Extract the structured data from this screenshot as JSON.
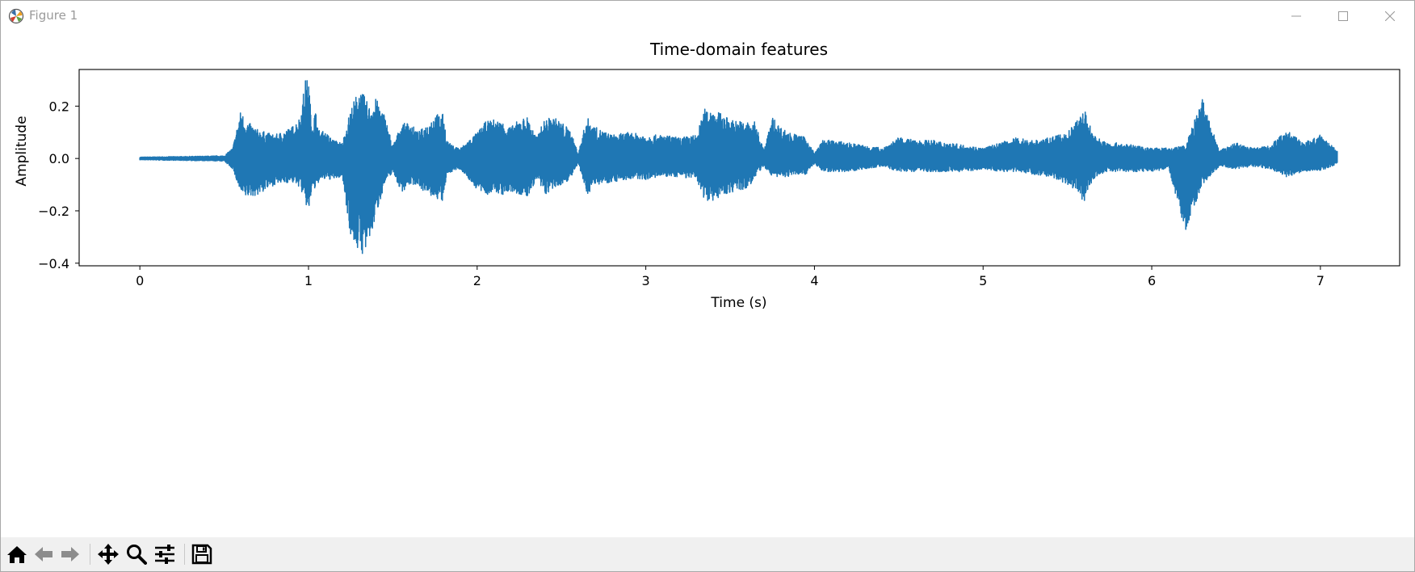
{
  "window": {
    "title": "Figure 1"
  },
  "toolbar": {
    "tools": [
      "home-icon",
      "back-icon",
      "forward-icon",
      "pan-icon",
      "zoom-icon",
      "configure-subplots-icon",
      "save-icon"
    ]
  },
  "colors": {
    "line": "#1f77b4",
    "toolbar_bg": "#f0f0f0",
    "title_text": "#9a9a9a"
  },
  "chart_data": {
    "type": "line",
    "title": "Time-domain features",
    "xlabel": "Time (s)",
    "ylabel": "Amplitude",
    "xlim": [
      -0.36,
      7.47
    ],
    "ylim": [
      -0.41,
      0.34
    ],
    "xticks": [
      0,
      1,
      2,
      3,
      4,
      5,
      6,
      7
    ],
    "xtick_labels": [
      "0",
      "1",
      "2",
      "3",
      "4",
      "5",
      "6",
      "7"
    ],
    "yticks": [
      0.2,
      0.0,
      -0.2,
      -0.4
    ],
    "ytick_labels": [
      "0.2",
      "0.0",
      "−0.2",
      "−0.4"
    ],
    "grid": false,
    "series": [
      {
        "envelope": {
          "t": [
            0.0,
            0.3,
            0.5,
            0.55,
            0.6,
            0.62,
            0.7,
            0.8,
            0.9,
            0.95,
            0.98,
            1.0,
            1.02,
            1.04,
            1.06,
            1.1,
            1.15,
            1.2,
            1.25,
            1.3,
            1.33,
            1.36,
            1.4,
            1.45,
            1.5,
            1.55,
            1.6,
            1.65,
            1.7,
            1.75,
            1.8,
            1.82,
            1.85,
            1.9,
            2.0,
            2.05,
            2.1,
            2.15,
            2.2,
            2.25,
            2.3,
            2.35,
            2.4,
            2.45,
            2.5,
            2.55,
            2.6,
            2.65,
            2.7,
            2.8,
            2.9,
            3.0,
            3.1,
            3.2,
            3.3,
            3.35,
            3.4,
            3.5,
            3.6,
            3.65,
            3.7,
            3.75,
            3.8,
            3.85,
            3.9,
            3.95,
            4.0,
            4.05,
            4.1,
            4.2,
            4.3,
            4.4,
            4.5,
            4.6,
            4.7,
            4.8,
            4.9,
            5.0,
            5.1,
            5.2,
            5.3,
            5.4,
            5.5,
            5.55,
            5.6,
            5.65,
            5.7,
            5.75,
            5.8,
            5.9,
            6.0,
            6.1,
            6.2,
            6.3,
            6.4,
            6.5,
            6.6,
            6.7,
            6.8,
            6.9,
            7.0,
            7.1
          ],
          "upper": [
            0.005,
            0.008,
            0.01,
            0.04,
            0.19,
            0.15,
            0.11,
            0.09,
            0.12,
            0.16,
            0.3,
            0.31,
            0.12,
            0.19,
            0.11,
            0.1,
            0.07,
            0.06,
            0.19,
            0.27,
            0.24,
            0.2,
            0.23,
            0.17,
            0.05,
            0.13,
            0.14,
            0.1,
            0.13,
            0.17,
            0.17,
            0.07,
            0.05,
            0.04,
            0.1,
            0.14,
            0.15,
            0.14,
            0.12,
            0.15,
            0.16,
            0.08,
            0.15,
            0.16,
            0.14,
            0.11,
            0.02,
            0.16,
            0.12,
            0.09,
            0.1,
            0.09,
            0.09,
            0.08,
            0.09,
            0.19,
            0.19,
            0.15,
            0.14,
            0.14,
            0.03,
            0.16,
            0.12,
            0.1,
            0.09,
            0.08,
            0.02,
            0.07,
            0.07,
            0.06,
            0.05,
            0.04,
            0.08,
            0.07,
            0.07,
            0.06,
            0.05,
            0.04,
            0.06,
            0.08,
            0.07,
            0.08,
            0.1,
            0.14,
            0.19,
            0.1,
            0.07,
            0.06,
            0.06,
            0.05,
            0.04,
            0.04,
            0.05,
            0.23,
            0.03,
            0.06,
            0.04,
            0.05,
            0.11,
            0.06,
            0.09,
            0.03
          ],
          "lower": [
            -0.005,
            -0.008,
            -0.01,
            -0.04,
            -0.14,
            -0.15,
            -0.14,
            -0.1,
            -0.09,
            -0.11,
            -0.17,
            -0.21,
            -0.12,
            -0.12,
            -0.09,
            -0.08,
            -0.08,
            -0.07,
            -0.3,
            -0.36,
            -0.37,
            -0.33,
            -0.22,
            -0.1,
            -0.05,
            -0.13,
            -0.1,
            -0.1,
            -0.14,
            -0.15,
            -0.17,
            -0.06,
            -0.05,
            -0.04,
            -0.12,
            -0.14,
            -0.13,
            -0.14,
            -0.13,
            -0.14,
            -0.15,
            -0.08,
            -0.14,
            -0.12,
            -0.1,
            -0.08,
            -0.02,
            -0.14,
            -0.1,
            -0.09,
            -0.08,
            -0.08,
            -0.07,
            -0.07,
            -0.08,
            -0.16,
            -0.16,
            -0.13,
            -0.12,
            -0.07,
            -0.03,
            -0.07,
            -0.07,
            -0.07,
            -0.06,
            -0.06,
            -0.02,
            -0.05,
            -0.05,
            -0.05,
            -0.04,
            -0.03,
            -0.05,
            -0.05,
            -0.05,
            -0.05,
            -0.05,
            -0.04,
            -0.05,
            -0.05,
            -0.06,
            -0.07,
            -0.1,
            -0.12,
            -0.17,
            -0.08,
            -0.06,
            -0.05,
            -0.05,
            -0.05,
            -0.05,
            -0.04,
            -0.28,
            -0.1,
            -0.03,
            -0.04,
            -0.03,
            -0.04,
            -0.07,
            -0.05,
            -0.05,
            -0.02
          ]
        }
      }
    ]
  }
}
